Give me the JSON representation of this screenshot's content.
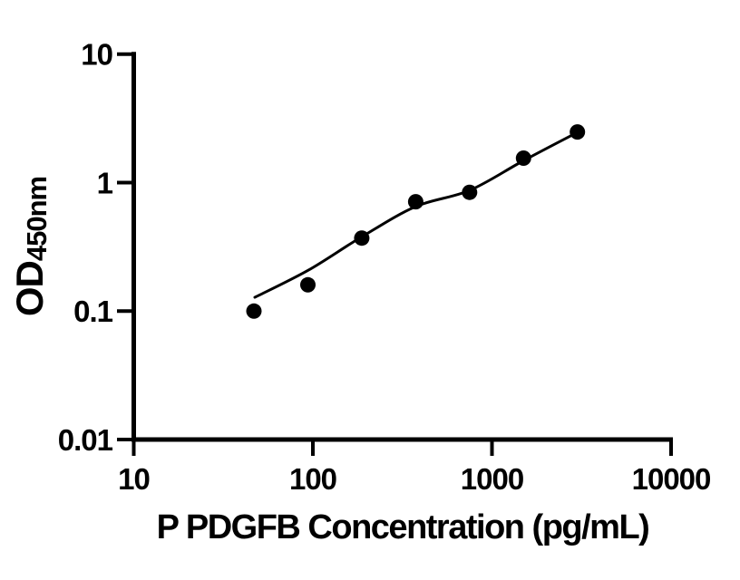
{
  "figure": {
    "background": "#ffffff"
  },
  "chart_data": {
    "type": "scatter",
    "title": "",
    "xlabel": "P PDGFB Concentration (pg/mL)",
    "ylabel": "OD450nm",
    "ylabel_main": "OD",
    "ylabel_sub": "450nm",
    "x_scale": "log10",
    "y_scale": "log10",
    "xlim": [
      10,
      10000
    ],
    "ylim": [
      0.01,
      10
    ],
    "grid": false,
    "legend": "none",
    "axis_color": "#000000",
    "marker_color": "#000000",
    "line_color": "#000000",
    "x_ticks": [
      {
        "value": 10,
        "label": "10"
      },
      {
        "value": 100,
        "label": "100"
      },
      {
        "value": 1000,
        "label": "1000"
      },
      {
        "value": 10000,
        "label": "10000"
      }
    ],
    "y_ticks": [
      {
        "value": 10,
        "label": "10"
      },
      {
        "value": 1,
        "label": "1"
      },
      {
        "value": 0.1,
        "label": "0.1"
      },
      {
        "value": 0.01,
        "label": "0.01"
      }
    ],
    "series": [
      {
        "name": "standard-curve-points",
        "marker": "filled-circle",
        "color": "#000000",
        "points": [
          {
            "x": 46.88,
            "y": 0.1
          },
          {
            "x": 93.75,
            "y": 0.16
          },
          {
            "x": 187.5,
            "y": 0.37
          },
          {
            "x": 375,
            "y": 0.71
          },
          {
            "x": 750,
            "y": 0.84
          },
          {
            "x": 1500,
            "y": 1.55
          },
          {
            "x": 3000,
            "y": 2.48
          }
        ]
      }
    ],
    "fit_line": {
      "name": "power-fit-line",
      "color": "#000000",
      "points": [
        {
          "x": 47.4,
          "y": 0.128
        },
        {
          "x": 94.2,
          "y": 0.208
        },
        {
          "x": 185,
          "y": 0.374
        },
        {
          "x": 373,
          "y": 0.649
        },
        {
          "x": 750,
          "y": 0.87
        },
        {
          "x": 1509,
          "y": 1.49
        },
        {
          "x": 3000,
          "y": 2.46
        }
      ]
    }
  }
}
